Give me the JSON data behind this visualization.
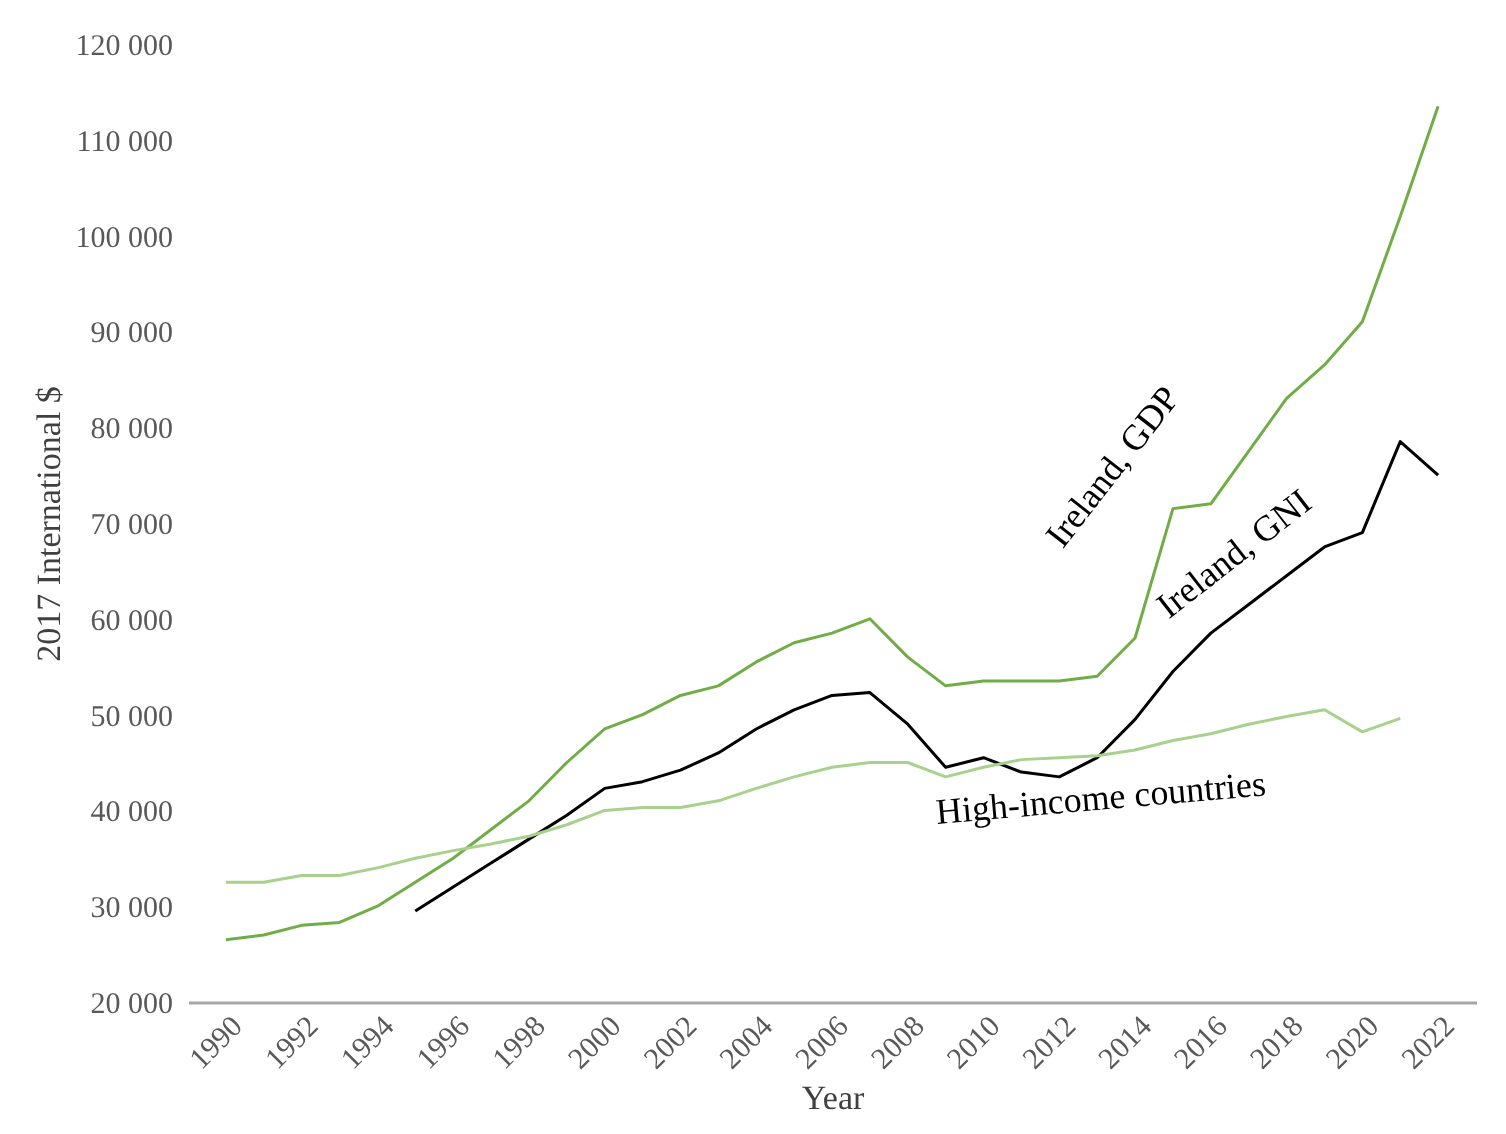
{
  "chart_data": {
    "type": "line",
    "xlabel": "Year",
    "ylabel": "2017 International $",
    "x": [
      1990,
      1991,
      1992,
      1993,
      1994,
      1995,
      1996,
      1997,
      1998,
      1999,
      2000,
      2001,
      2002,
      2003,
      2004,
      2005,
      2006,
      2007,
      2008,
      2009,
      2010,
      2011,
      2012,
      2013,
      2014,
      2015,
      2016,
      2017,
      2018,
      2019,
      2020,
      2021,
      2022
    ],
    "series": [
      {
        "name": "Ireland, GDP",
        "color": "#70ad47",
        "values": [
          26500,
          27000,
          28000,
          28300,
          30000,
          32500,
          35000,
          38000,
          41000,
          45000,
          48500,
          50000,
          52000,
          53000,
          55500,
          57500,
          58500,
          60000,
          56000,
          53000,
          53500,
          53500,
          53500,
          54000,
          58000,
          71500,
          72000,
          77500,
          83000,
          86500,
          91000,
          102000,
          113500
        ]
      },
      {
        "name": "Ireland, GNI",
        "color": "#000000",
        "values": [
          null,
          null,
          null,
          null,
          null,
          29500,
          32000,
          34500,
          37000,
          39500,
          42300,
          43000,
          44200,
          46000,
          48500,
          50500,
          52000,
          52300,
          49000,
          44500,
          45500,
          44000,
          43500,
          45500,
          49500,
          54500,
          58500,
          61500,
          64500,
          67500,
          69000,
          78500,
          75000
        ]
      },
      {
        "name": "High-income countries",
        "color": "#a9d18e",
        "values": [
          32500,
          32500,
          33200,
          33200,
          34000,
          35000,
          35800,
          36500,
          37300,
          38500,
          40000,
          40300,
          40300,
          41000,
          42300,
          43500,
          44500,
          45000,
          45000,
          43500,
          44500,
          45300,
          45500,
          45700,
          46300,
          47300,
          48000,
          49000,
          49800,
          50500,
          48200,
          49600,
          null
        ]
      }
    ],
    "xlim": [
      1989,
      2023
    ],
    "xticks": [
      1990,
      1992,
      1994,
      1996,
      1998,
      2000,
      2002,
      2004,
      2006,
      2008,
      2010,
      2012,
      2014,
      2016,
      2018,
      2020,
      2022
    ],
    "ylim": [
      20000,
      120000
    ],
    "yticks": [
      {
        "value": 20000,
        "label": "20 000"
      },
      {
        "value": 30000,
        "label": "30 000"
      },
      {
        "value": 40000,
        "label": "40 000"
      },
      {
        "value": 50000,
        "label": "50 000"
      },
      {
        "value": 60000,
        "label": "60 000"
      },
      {
        "value": 70000,
        "label": "70 000"
      },
      {
        "value": 80000,
        "label": "80 000"
      },
      {
        "value": 90000,
        "label": "90 000"
      },
      {
        "value": 100000,
        "label": "100 000"
      },
      {
        "value": 110000,
        "label": "110 000"
      },
      {
        "value": 120000,
        "label": "120 000"
      }
    ],
    "marker": "none",
    "line_style": "solid"
  }
}
